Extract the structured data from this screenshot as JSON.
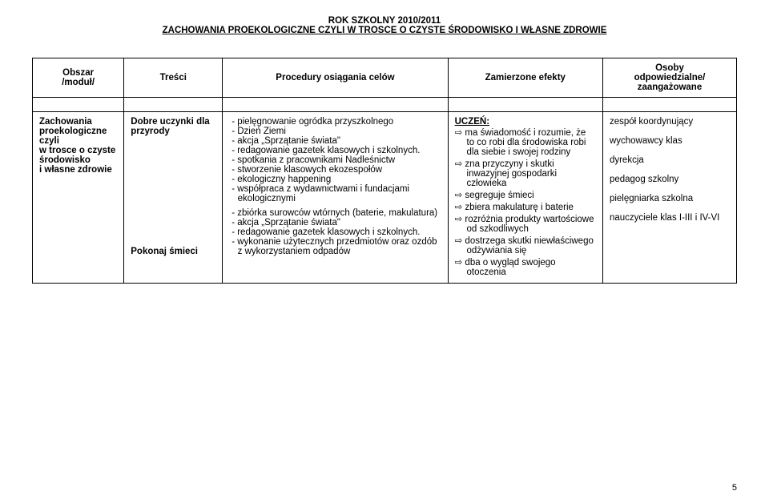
{
  "header": {
    "year": "ROK SZKOLNY 2010/2011",
    "title": "ZACHOWANIA PROEKOLOGICZNE CZYLI W TROSCE O CZYSTE ŚRODOWISKO I WŁASNE ZDROWIE"
  },
  "columns": {
    "obszar_l1": "Obszar",
    "obszar_l2": "/moduł/",
    "tresci": "Treści",
    "procedury": "Procedury osiągania celów",
    "efekty": "Zamierzone efekty",
    "osoby_l1": "Osoby",
    "osoby_l2": "odpowiedzialne/",
    "osoby_l3": "zaangażowane"
  },
  "body": {
    "obszar": "Zachowania proekologiczne czyli\n w trosce o czyste środowisko\ni własne zdrowie",
    "tresci1": "Dobre uczynki dla przyrody",
    "tresci2": "Pokonaj śmieci",
    "proc1": [
      "pielęgnowanie ogródka przyszkolnego",
      "Dzień Ziemi",
      "akcja „Sprzątanie świata\"",
      "redagowanie gazetek klasowych i szkolnych.",
      "spotkania z pracownikami Nadleśnictw",
      "stworzenie klasowych ekozespołów",
      "ekologiczny happening",
      "współpraca z wydawnictwami i fundacjami ekologicznymi"
    ],
    "proc2": [
      "zbiórka surowców wtórnych (baterie, makulatura)",
      "akcja „Sprzątanie świata\"",
      "redagowanie gazetek klasowych i szkolnych.",
      "wykonanie użytecznych przedmiotów oraz ozdób z wykorzystaniem odpadów"
    ],
    "uczen_label": "UCZEŃ:",
    "efekty": [
      "ma świadomość i rozumie, że to co robi dla środowiska robi dla siebie i swojej rodziny",
      "zna przyczyny i skutki inwazyjnej gospodarki człowieka",
      "segreguje śmieci",
      "zbiera makulaturę i baterie",
      "rozróżnia produkty wartościowe od szkodliwych",
      "dostrzega skutki niewłaściwego odżywiania się",
      "dba o wygląd swojego otoczenia"
    ],
    "osoby": [
      "zespół koordynujący",
      "wychowawcy klas",
      "dyrekcja",
      "pedagog szkolny",
      "pielęgniarka szkolna",
      "nauczyciele klas I-III i IV-VI"
    ]
  },
  "page_number": "5",
  "style": {
    "background": "#ffffff",
    "text_color": "#000000",
    "border_color": "#000000",
    "font_family": "Verdana",
    "base_fontsize_pt": 9,
    "header_fontsize_pt": 9,
    "arrow_glyph": "⇨"
  }
}
